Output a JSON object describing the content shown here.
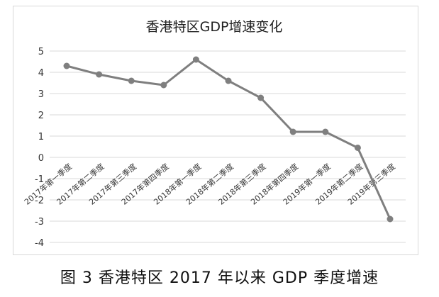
{
  "caption": "图 3 香港特区 2017 年以来 GDP 季度增速",
  "chart_data": {
    "type": "line",
    "title": "香港特区GDP增速变化",
    "categories": [
      "2017年第一季度",
      "2017年第二季度",
      "2017年第三季度",
      "2017年第四季度",
      "2018年第一季度",
      "2018年第二季度",
      "2018年第三季度",
      "2018年第四季度",
      "2019年第一季度",
      "2019年第二季度",
      "2019年第三季度"
    ],
    "values": [
      4.3,
      3.9,
      3.6,
      3.4,
      4.6,
      3.6,
      2.8,
      1.2,
      1.2,
      0.45,
      -2.9
    ],
    "yticks": [
      "5",
      "4",
      "3",
      "2",
      "1",
      "0",
      "-1",
      "-2",
      "-3",
      "-4"
    ],
    "ylim": [
      -4,
      5
    ],
    "grid": true,
    "line_color": "#7f7f7f",
    "grid_color": "#d9d9d9"
  }
}
